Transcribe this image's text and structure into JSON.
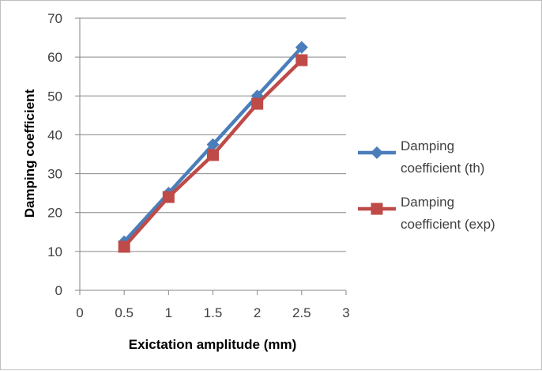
{
  "chart_data": {
    "type": "line",
    "title": "",
    "xlabel": "Exictation amplitude (mm)",
    "ylabel": "Damping coefficient",
    "xlim": [
      0,
      3
    ],
    "ylim": [
      0,
      70
    ],
    "x_ticks": [
      "0",
      "0.5",
      "1",
      "1.5",
      "2",
      "2.5",
      "3"
    ],
    "y_ticks": [
      "0",
      "10",
      "20",
      "30",
      "40",
      "50",
      "60",
      "70"
    ],
    "grid": "horizontal",
    "legend_position": "right",
    "x": [
      0.5,
      1,
      1.5,
      2,
      2.5
    ],
    "series": [
      {
        "name": "Damping coefficient (th)",
        "legend_lines": [
          "Damping",
          "coefficient (th)"
        ],
        "values": [
          12.5,
          25,
          37.5,
          50,
          62.5
        ],
        "color": "#4a7ebb",
        "marker": "diamond"
      },
      {
        "name": "Damping coefficient (exp)",
        "legend_lines": [
          "Damping",
          "coefficient (exp)"
        ],
        "values": [
          11.2,
          24,
          34.8,
          48,
          59.2
        ],
        "color": "#be4b48",
        "marker": "square"
      }
    ]
  }
}
